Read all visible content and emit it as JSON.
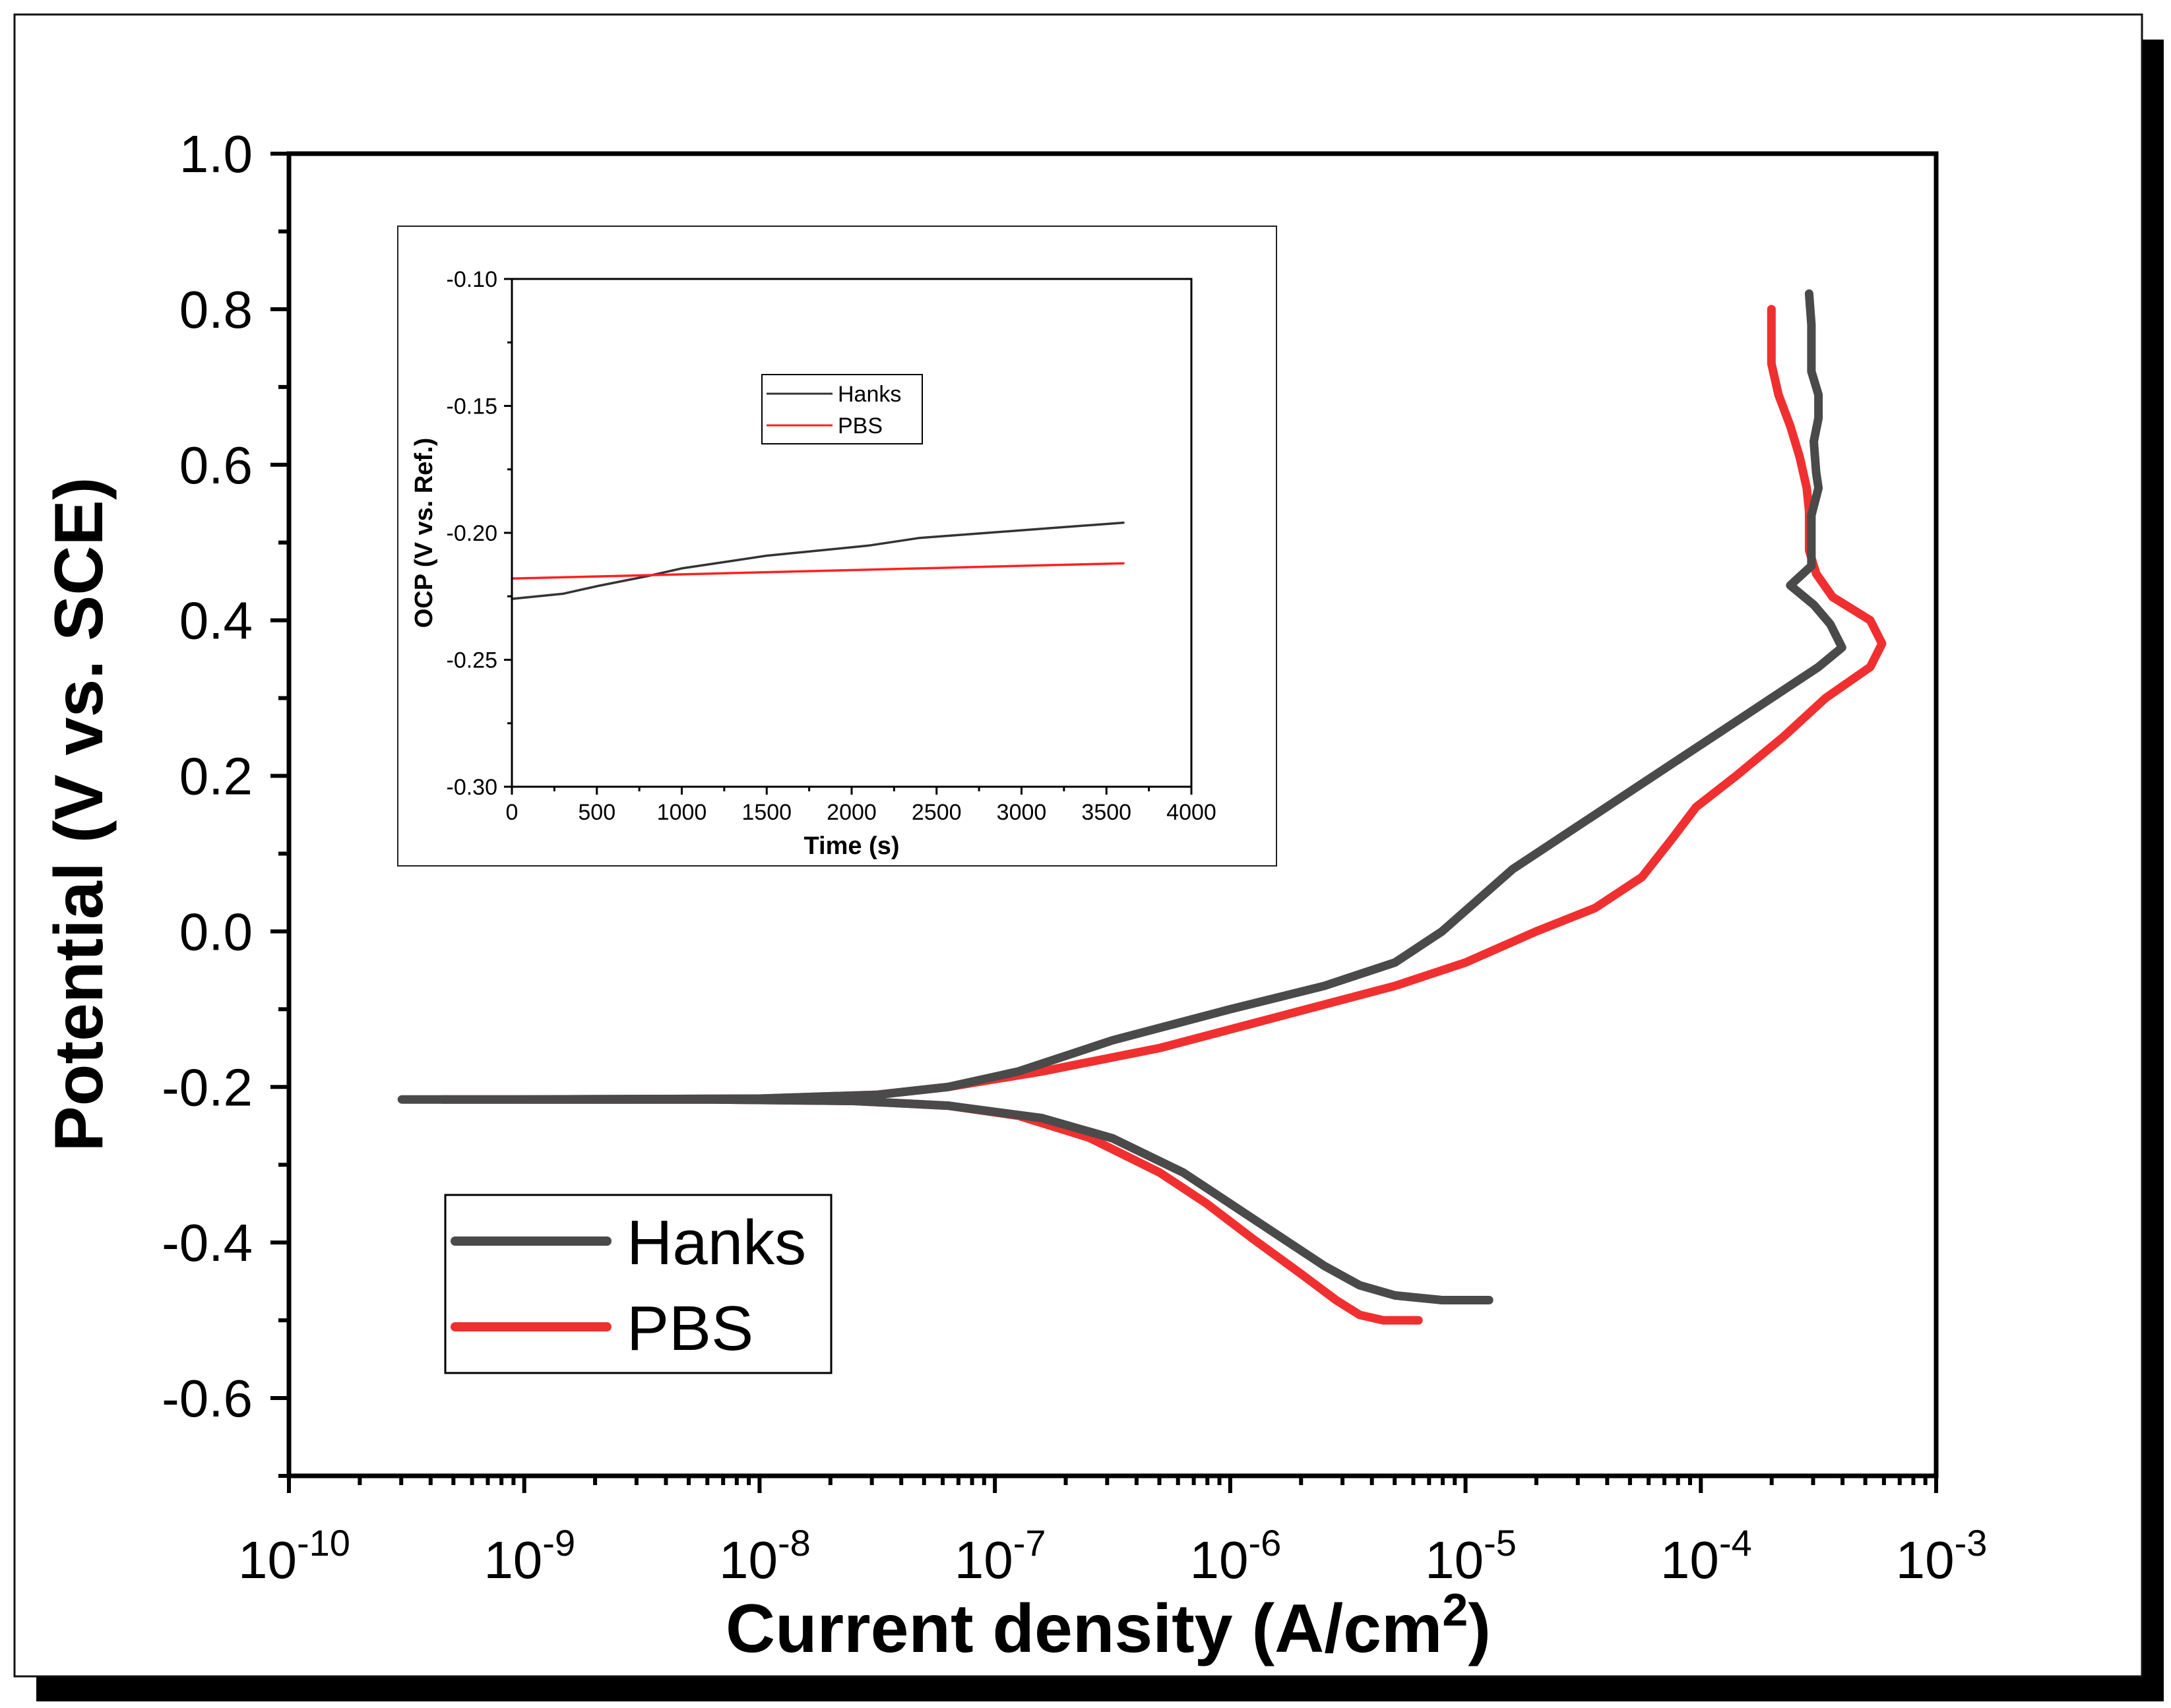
{
  "chart_data": [
    {
      "type": "line",
      "title": "",
      "xlabel": "Current density (A/cm",
      "xlabel_sup": "2",
      "xlabel_end": ")",
      "ylabel": "Potential (V vs. SCE)",
      "xscale": "log",
      "xlim_exp": [
        -10,
        -3
      ],
      "ylim": [
        -0.7,
        1.0
      ],
      "x_ticks": [
        {
          "base": "10",
          "exp": "-10"
        },
        {
          "base": "10",
          "exp": "-9"
        },
        {
          "base": "10",
          "exp": "-8"
        },
        {
          "base": "10",
          "exp": "-7"
        },
        {
          "base": "10",
          "exp": "-6"
        },
        {
          "base": "10",
          "exp": "-5"
        },
        {
          "base": "10",
          "exp": "-4"
        },
        {
          "base": "10",
          "exp": "-3"
        }
      ],
      "y_ticks": [
        "-0.6",
        "-0.4",
        "-0.2",
        "0.0",
        "0.2",
        "0.4",
        "0.6",
        "0.8",
        "1.0"
      ],
      "legend_position": "bottom-left",
      "series": [
        {
          "name": "Hanks",
          "color": "#4a4a4a",
          "points": [
            [
              -4.9,
              -0.474
            ],
            [
              -5.1,
              -0.474
            ],
            [
              -5.3,
              -0.468
            ],
            [
              -5.45,
              -0.455
            ],
            [
              -5.6,
              -0.43
            ],
            [
              -5.8,
              -0.39
            ],
            [
              -6.0,
              -0.35
            ],
            [
              -6.2,
              -0.31
            ],
            [
              -6.5,
              -0.266
            ],
            [
              -6.8,
              -0.24
            ],
            [
              -7.2,
              -0.224
            ],
            [
              -7.6,
              -0.218
            ],
            [
              -8.2,
              -0.216
            ],
            [
              -9.0,
              -0.216
            ],
            [
              -9.52,
              -0.216
            ],
            [
              -9.0,
              -0.216
            ],
            [
              -8.0,
              -0.215
            ],
            [
              -7.5,
              -0.21
            ],
            [
              -7.2,
              -0.2
            ],
            [
              -6.9,
              -0.18
            ],
            [
              -6.5,
              -0.14
            ],
            [
              -6.0,
              -0.1
            ],
            [
              -5.6,
              -0.07
            ],
            [
              -5.3,
              -0.04
            ],
            [
              -5.1,
              0.0
            ],
            [
              -4.95,
              0.04
            ],
            [
              -4.8,
              0.08
            ],
            [
              -4.55,
              0.13
            ],
            [
              -4.3,
              0.18
            ],
            [
              -4.1,
              0.22
            ],
            [
              -3.9,
              0.26
            ],
            [
              -3.7,
              0.3
            ],
            [
              -3.5,
              0.34
            ],
            [
              -3.4,
              0.365
            ],
            [
              -3.45,
              0.395
            ],
            [
              -3.52,
              0.42
            ],
            [
              -3.62,
              0.445
            ],
            [
              -3.53,
              0.47
            ],
            [
              -3.53,
              0.5
            ],
            [
              -3.53,
              0.535
            ],
            [
              -3.5,
              0.57
            ],
            [
              -3.51,
              0.59
            ],
            [
              -3.52,
              0.63
            ],
            [
              -3.5,
              0.66
            ],
            [
              -3.5,
              0.69
            ],
            [
              -3.53,
              0.72
            ],
            [
              -3.53,
              0.75
            ],
            [
              -3.53,
              0.78
            ],
            [
              -3.54,
              0.82
            ]
          ]
        },
        {
          "name": "PBS",
          "color": "#f03030",
          "points": [
            [
              -5.2,
              -0.5
            ],
            [
              -5.35,
              -0.5
            ],
            [
              -5.45,
              -0.493
            ],
            [
              -5.55,
              -0.474
            ],
            [
              -5.7,
              -0.44
            ],
            [
              -5.9,
              -0.396
            ],
            [
              -6.1,
              -0.35
            ],
            [
              -6.3,
              -0.31
            ],
            [
              -6.6,
              -0.265
            ],
            [
              -6.9,
              -0.237
            ],
            [
              -7.2,
              -0.224
            ],
            [
              -7.6,
              -0.218
            ],
            [
              -8.2,
              -0.216
            ],
            [
              -9.0,
              -0.216
            ],
            [
              -9.35,
              -0.216
            ],
            [
              -9.0,
              -0.216
            ],
            [
              -8.0,
              -0.215
            ],
            [
              -7.5,
              -0.21
            ],
            [
              -7.2,
              -0.2
            ],
            [
              -6.8,
              -0.18
            ],
            [
              -6.3,
              -0.15
            ],
            [
              -5.8,
              -0.11
            ],
            [
              -5.3,
              -0.07
            ],
            [
              -5.0,
              -0.04
            ],
            [
              -4.7,
              0.0
            ],
            [
              -4.45,
              0.03
            ],
            [
              -4.25,
              0.07
            ],
            [
              -4.12,
              0.12
            ],
            [
              -4.02,
              0.16
            ],
            [
              -3.85,
              0.2
            ],
            [
              -3.65,
              0.25
            ],
            [
              -3.47,
              0.3
            ],
            [
              -3.28,
              0.34
            ],
            [
              -3.23,
              0.37
            ],
            [
              -3.28,
              0.4
            ],
            [
              -3.44,
              0.43
            ],
            [
              -3.51,
              0.46
            ],
            [
              -3.54,
              0.49
            ],
            [
              -3.54,
              0.54
            ],
            [
              -3.55,
              0.57
            ],
            [
              -3.58,
              0.61
            ],
            [
              -3.62,
              0.65
            ],
            [
              -3.67,
              0.69
            ],
            [
              -3.7,
              0.73
            ],
            [
              -3.7,
              0.77
            ],
            [
              -3.7,
              0.8
            ]
          ]
        }
      ]
    },
    {
      "type": "line",
      "title": "",
      "xlabel": "Time (s)",
      "ylabel": "OCP (V vs. Ref.)",
      "xlim": [
        0,
        4000
      ],
      "ylim": [
        -0.3,
        -0.1
      ],
      "x_ticks": [
        "0",
        "500",
        "1000",
        "1500",
        "2000",
        "2500",
        "3000",
        "3500",
        "4000"
      ],
      "y_ticks": [
        "-0.30",
        "-0.25",
        "-0.20",
        "-0.15",
        "-0.10"
      ],
      "legend_position": "top-left",
      "series": [
        {
          "name": "Hanks",
          "color": "#333333",
          "points": [
            [
              0,
              -0.226
            ],
            [
              150,
              -0.225
            ],
            [
              300,
              -0.224
            ],
            [
              500,
              -0.221
            ],
            [
              800,
              -0.217
            ],
            [
              1000,
              -0.214
            ],
            [
              1300,
              -0.211
            ],
            [
              1500,
              -0.209
            ],
            [
              1800,
              -0.207
            ],
            [
              2100,
              -0.205
            ],
            [
              2400,
              -0.202
            ],
            [
              2800,
              -0.2
            ],
            [
              3200,
              -0.198
            ],
            [
              3600,
              -0.196
            ]
          ]
        },
        {
          "name": "PBS",
          "color": "#ff2020",
          "points": [
            [
              0,
              -0.218
            ],
            [
              600,
              -0.217
            ],
            [
              1200,
              -0.216
            ],
            [
              1800,
              -0.215
            ],
            [
              2400,
              -0.214
            ],
            [
              3000,
              -0.213
            ],
            [
              3600,
              -0.212
            ]
          ]
        }
      ]
    }
  ]
}
